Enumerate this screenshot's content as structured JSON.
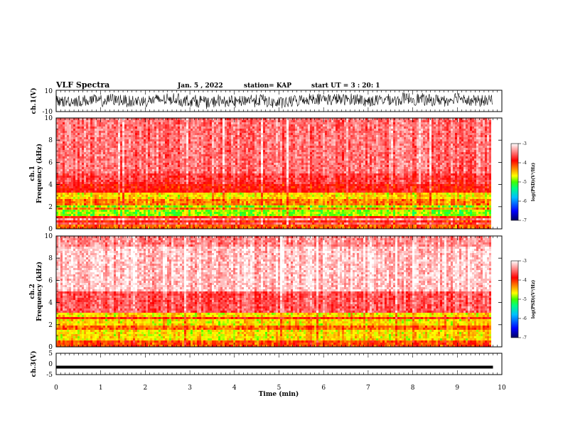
{
  "header": {
    "title": "VLF Spectra",
    "date": "Jan. 5 , 2022",
    "station": "station= KAP",
    "start": "start UT =  3 : 20: 1"
  },
  "colors": {
    "spectrum_scale": [
      "#000080",
      "#0000ff",
      "#0080ff",
      "#00ffff",
      "#00ff00",
      "#ffff00",
      "#ff8000",
      "#ff0000",
      "#ffffff"
    ],
    "trace": "#000000"
  },
  "chart_data": [
    {
      "type": "line",
      "panel": "ch.1 waveform",
      "ylabel": "ch.1(V)",
      "xlim": [
        0,
        10
      ],
      "ylim": [
        -10,
        10
      ],
      "y_ticks": [
        "10",
        "-10"
      ],
      "description_values": {
        "x_extent_min": 9.8,
        "typical_range": [
          -8,
          8
        ]
      }
    },
    {
      "type": "heatmap",
      "panel": "ch.1 spectrogram",
      "ylabel": "ch.1 Frequency (kHz)",
      "xlim": [
        0,
        10
      ],
      "ylim": [
        0,
        10
      ],
      "y_ticks": [
        "0",
        "2",
        "4",
        "6",
        "8",
        "10"
      ],
      "x_extent_min": 9.8,
      "bands": [
        {
          "freq_khz": [
            0.0,
            0.6
          ],
          "level": -4.2
        },
        {
          "freq_khz": [
            0.6,
            1.2
          ],
          "level": -4.0
        },
        {
          "freq_khz": [
            1.2,
            2.2
          ],
          "level": -4.9
        },
        {
          "freq_khz": [
            2.2,
            2.6
          ],
          "level": -4.3
        },
        {
          "freq_khz": [
            2.6,
            3.3
          ],
          "level": -4.6
        },
        {
          "freq_khz": [
            3.3,
            4.0
          ],
          "level": -3.9
        },
        {
          "freq_khz": [
            4.0,
            5.0
          ],
          "level": -3.7
        },
        {
          "freq_khz": [
            5.0,
            10.0
          ],
          "level": -3.5
        }
      ],
      "colorbar": {
        "label": "log(PSD)(V²/Hz)",
        "ticks": [
          "-3",
          "-4",
          "-5",
          "-6",
          "-7"
        ],
        "range": [
          -7,
          -3
        ]
      }
    },
    {
      "type": "heatmap",
      "panel": "ch.2 spectrogram",
      "ylabel": "ch.2 Frequency (kHz)",
      "xlim": [
        0,
        10
      ],
      "ylim": [
        0,
        10
      ],
      "y_ticks": [
        "0",
        "2",
        "4",
        "6",
        "8",
        "10"
      ],
      "x_extent_min": 9.8,
      "bands": [
        {
          "freq_khz": [
            0.0,
            0.6
          ],
          "level": -4.1
        },
        {
          "freq_khz": [
            0.6,
            1.6
          ],
          "level": -4.6
        },
        {
          "freq_khz": [
            1.6,
            2.0
          ],
          "level": -4.2
        },
        {
          "freq_khz": [
            2.0,
            3.0
          ],
          "level": -4.6
        },
        {
          "freq_khz": [
            3.0,
            5.0
          ],
          "level": -3.6
        },
        {
          "freq_khz": [
            5.0,
            9.0
          ],
          "level": -3.2
        },
        {
          "freq_khz": [
            9.0,
            10.0
          ],
          "level": -3.4
        }
      ],
      "colorbar": {
        "label": "log(PSD)(V²/Hz)",
        "ticks": [
          "-3",
          "-4",
          "-5",
          "-6",
          "-7"
        ],
        "range": [
          -7,
          -3
        ]
      }
    },
    {
      "type": "line",
      "panel": "ch.3 waveform",
      "ylabel": "ch.3(V)",
      "xlim": [
        0,
        10
      ],
      "ylim": [
        -5,
        5
      ],
      "y_ticks": [
        "5",
        "0",
        "-5"
      ],
      "x_extent_min": 9.8,
      "mean_value": -1.5,
      "xlabel": "Time (min)",
      "x_ticks": [
        "0",
        "1",
        "2",
        "3",
        "4",
        "5",
        "6",
        "7",
        "8",
        "9",
        "10"
      ]
    }
  ]
}
